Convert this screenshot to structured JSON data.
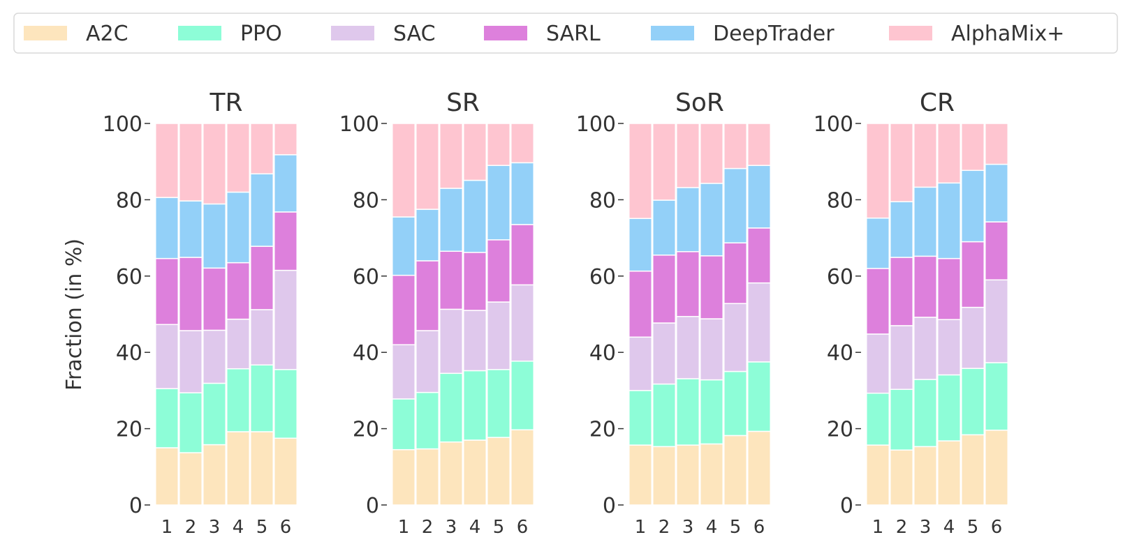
{
  "chart_data": {
    "type": "bar",
    "stacked": true,
    "ylabel": "Fraction (in %)",
    "ylim": [
      0,
      100
    ],
    "yticks": [
      "0",
      "20",
      "40",
      "60",
      "80",
      "100"
    ],
    "categories": [
      "1",
      "2",
      "3",
      "4",
      "5",
      "6"
    ],
    "legend": {
      "placement": "top",
      "entries": [
        "A2C",
        "PPO",
        "SAC",
        "SARL",
        "DeepTrader",
        "AlphaMix+"
      ]
    },
    "colors": {
      "A2C": "#fde5bd",
      "PPO": "#8dfdd7",
      "SAC": "#dfc8ec",
      "SARL": "#dd80dc",
      "DeepTrader": "#93d0f8",
      "AlphaMix+": "#fec5d0"
    },
    "panels": [
      {
        "title": "TR",
        "series": [
          {
            "name": "A2C",
            "values": [
              15,
              13.7,
              15.8,
              19.2,
              19.2,
              17.5
            ]
          },
          {
            "name": "PPO",
            "values": [
              15.5,
              15.7,
              16.1,
              16.5,
              17.5,
              18
            ]
          },
          {
            "name": "SAC",
            "values": [
              16.8,
              16.3,
              13.9,
              13,
              14.5,
              26
            ]
          },
          {
            "name": "SARL",
            "values": [
              17.3,
              19.2,
              16.3,
              14.8,
              16.6,
              15.3
            ]
          },
          {
            "name": "DeepTrader",
            "values": [
              16,
              14.8,
              16.8,
              18.5,
              19,
              15
            ]
          },
          {
            "name": "AlphaMix+",
            "values": [
              19.4,
              20.3,
              21.1,
              18,
              13.2,
              8.2
            ]
          }
        ]
      },
      {
        "title": "SR",
        "series": [
          {
            "name": "A2C",
            "values": [
              14.5,
              14.7,
              16.5,
              17,
              17.7,
              19.7
            ]
          },
          {
            "name": "PPO",
            "values": [
              13.3,
              14.8,
              18,
              18.2,
              17.8,
              18
            ]
          },
          {
            "name": "SAC",
            "values": [
              14.2,
              16.2,
              16.8,
              15.8,
              17.7,
              20
            ]
          },
          {
            "name": "SARL",
            "values": [
              18.2,
              18.3,
              15.2,
              15.2,
              16.3,
              15.8
            ]
          },
          {
            "name": "DeepTrader",
            "values": [
              15.3,
              13.5,
              16.5,
              18.9,
              19.5,
              16.2
            ]
          },
          {
            "name": "AlphaMix+",
            "values": [
              24.5,
              22.5,
              17,
              14.9,
              11,
              10.3
            ]
          }
        ]
      },
      {
        "title": "SoR",
        "series": [
          {
            "name": "A2C",
            "values": [
              15.7,
              15.3,
              15.7,
              16,
              18.2,
              19.3
            ]
          },
          {
            "name": "PPO",
            "values": [
              14.3,
              16.4,
              17.4,
              16.8,
              16.8,
              18.2
            ]
          },
          {
            "name": "SAC",
            "values": [
              14,
              16,
              16.3,
              16,
              17.8,
              20.7
            ]
          },
          {
            "name": "SARL",
            "values": [
              17.3,
              17.8,
              17,
              16.5,
              15.9,
              14.4
            ]
          },
          {
            "name": "DeepTrader",
            "values": [
              13.8,
              14.4,
              16.8,
              19,
              19.5,
              16.4
            ]
          },
          {
            "name": "AlphaMix+",
            "values": [
              24.9,
              20.1,
              16.8,
              15.7,
              11.8,
              11
            ]
          }
        ]
      },
      {
        "title": "CR",
        "series": [
          {
            "name": "A2C",
            "values": [
              15.7,
              14.4,
              15.3,
              16.8,
              18.4,
              19.6
            ]
          },
          {
            "name": "PPO",
            "values": [
              13.6,
              15.9,
              17.6,
              17.3,
              17.4,
              17.7
            ]
          },
          {
            "name": "SAC",
            "values": [
              15.5,
              16.7,
              16.3,
              14.5,
              16,
              21.7
            ]
          },
          {
            "name": "SARL",
            "values": [
              17.2,
              17.9,
              16,
              16,
              17.2,
              15.2
            ]
          },
          {
            "name": "DeepTrader",
            "values": [
              13.2,
              14.6,
              18.1,
              19.8,
              18.7,
              15.1
            ]
          },
          {
            "name": "AlphaMix+",
            "values": [
              24.8,
              20.5,
              16.7,
              15.6,
              12.3,
              10.7
            ]
          }
        ]
      }
    ]
  }
}
